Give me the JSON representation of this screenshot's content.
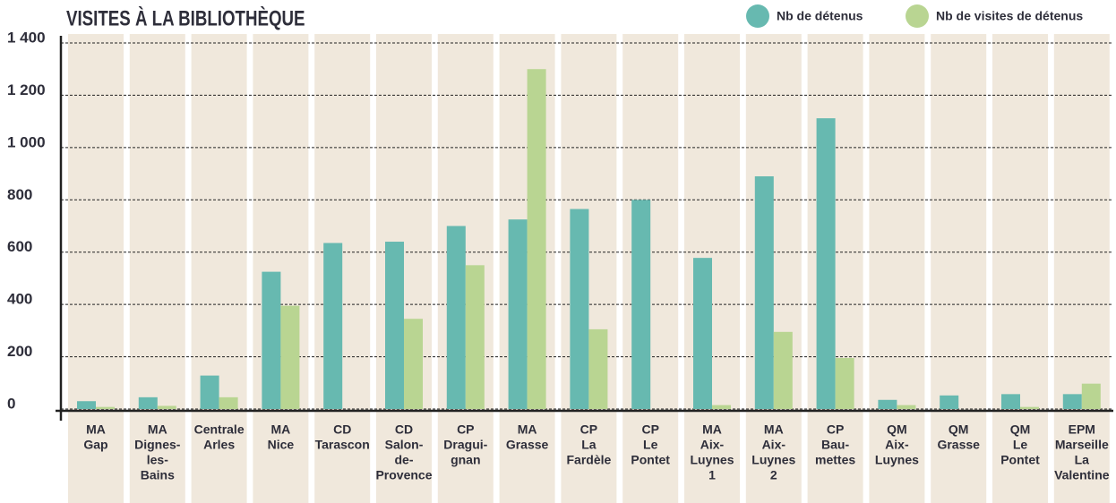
{
  "chart_data": {
    "type": "bar",
    "title": "VISITES À LA BIBLIOTHÈQUE",
    "categories": [
      [
        "MA",
        "Gap"
      ],
      [
        "MA",
        "Dignes-",
        "les-",
        "Bains"
      ],
      [
        "Centrale",
        "Arles"
      ],
      [
        "MA",
        "Nice"
      ],
      [
        "CD",
        "Tarascon"
      ],
      [
        "CD",
        "Salon-",
        "de-",
        "Provence"
      ],
      [
        "CP",
        "Dragui-",
        "gnan"
      ],
      [
        "MA",
        "Grasse"
      ],
      [
        "CP",
        "La",
        "Fardèle"
      ],
      [
        "CP",
        "Le",
        "Pontet"
      ],
      [
        "MA",
        "Aix-",
        "Luynes",
        "1"
      ],
      [
        "MA",
        "Aix-",
        "Luynes",
        "2"
      ],
      [
        "CP",
        "Bau-",
        "mettes"
      ],
      [
        "QM",
        "Aix-",
        "Luynes"
      ],
      [
        "QM",
        "Grasse"
      ],
      [
        "QM",
        "Le",
        "Pontet"
      ],
      [
        "EPM",
        "Marseille",
        "La",
        "Valentine"
      ]
    ],
    "series": [
      {
        "name": "Nb de détenus",
        "color": "#67b9b0",
        "values": [
          30,
          45,
          128,
          525,
          635,
          640,
          700,
          725,
          765,
          800,
          578,
          890,
          1112,
          35,
          52,
          57,
          57
        ]
      },
      {
        "name": "Nb de visites de détenus",
        "color": "#b9d592",
        "values": [
          8,
          12,
          45,
          395,
          null,
          345,
          550,
          1300,
          305,
          null,
          15,
          295,
          195,
          15,
          null,
          8,
          97
        ]
      }
    ],
    "ylim": [
      0,
      1400
    ],
    "yticks": [
      0,
      200,
      400,
      600,
      800,
      {
        "value": 1000,
        "label": "1 000"
      },
      {
        "value": 1200,
        "label": "1 200"
      },
      {
        "value": 1400,
        "label": "1 400"
      }
    ],
    "grid": true,
    "legend": "top-right"
  }
}
